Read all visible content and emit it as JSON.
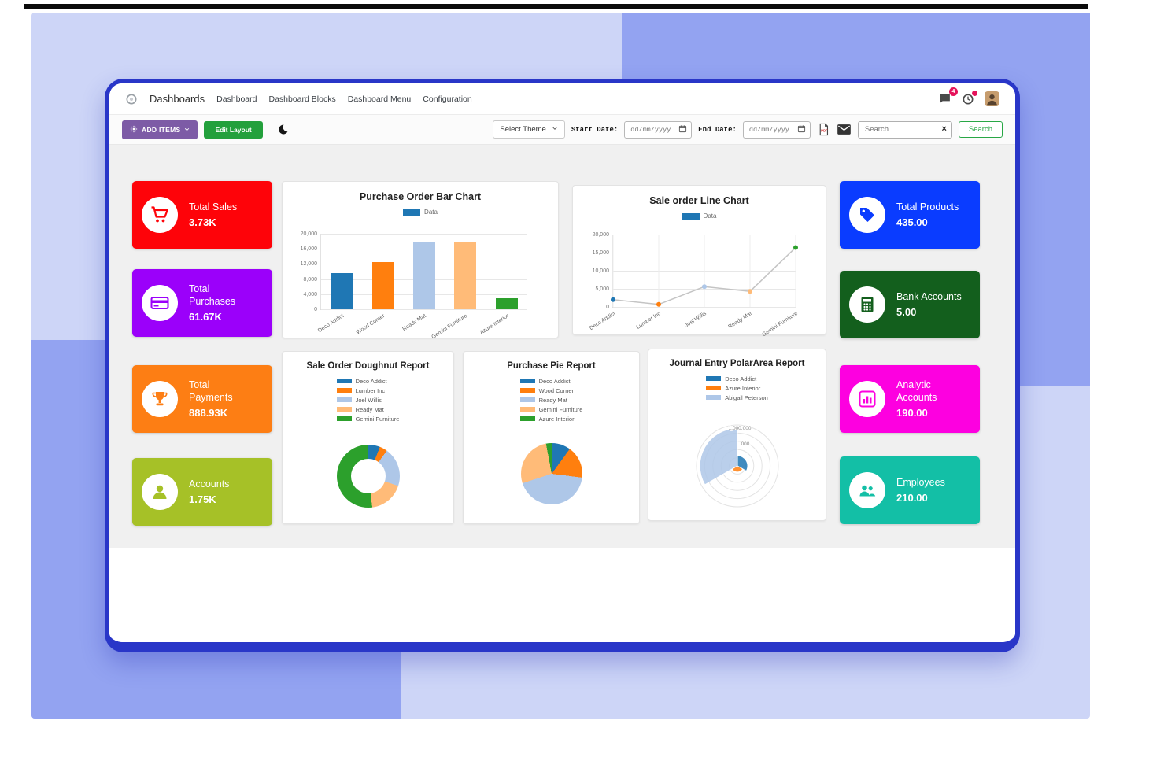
{
  "navbar": {
    "brand": "Dashboards",
    "menu": [
      "Dashboard",
      "Dashboard Blocks",
      "Dashboard Menu",
      "Configuration"
    ],
    "messages_badge": "4"
  },
  "toolbar": {
    "add_items": "ADD ITEMS",
    "edit_layout": "Edit Layout",
    "select_theme": "Select Theme",
    "start_date_label": "Start Date:",
    "end_date_label": "End Date:",
    "date_placeholder": "dd/mm/yyyy",
    "search_placeholder": "Search",
    "search_button": "Search"
  },
  "kpis": {
    "left": [
      {
        "label": "Total Sales",
        "value": "3.73K",
        "color": "#fe0309",
        "icon": "cart-icon"
      },
      {
        "label": "Total Purchases",
        "value": "61.67K",
        "color": "#9b00fa",
        "icon": "credit-card-icon"
      },
      {
        "label": "Total Payments",
        "value": "888.93K",
        "color": "#fd7e14",
        "icon": "trophy-icon"
      },
      {
        "label": "Accounts",
        "value": "1.75K",
        "color": "#a6c127",
        "icon": "user-icon"
      }
    ],
    "right": [
      {
        "label": "Total Products",
        "value": "435.00",
        "color": "#0a3cff",
        "icon": "tag-icon"
      },
      {
        "label": "Bank Accounts",
        "value": "5.00",
        "color": "#135f1d",
        "icon": "calculator-icon"
      },
      {
        "label": "Analytic Accounts",
        "value": "190.00",
        "color": "#fd00e0",
        "icon": "bar-chart-icon"
      },
      {
        "label": "Employees",
        "value": "210.00",
        "color": "#13bfa6",
        "icon": "employees-icon"
      }
    ]
  },
  "chart_data": [
    {
      "id": "purchase_bar",
      "type": "bar",
      "title": "Purchase Order Bar Chart",
      "legend": [
        {
          "label": "Data",
          "color": "#1f77b4"
        }
      ],
      "categories": [
        "Deco Addict",
        "Wood Corner",
        "Ready Mat",
        "Gemini Furniture",
        "Azure Interior"
      ],
      "values": [
        9500,
        12500,
        18000,
        17800,
        3000
      ],
      "colors": [
        "#1f77b4",
        "#ff7f0e",
        "#aec7e8",
        "#ffbb78",
        "#2ca02c"
      ],
      "yticks": [
        0,
        4000,
        8000,
        12000,
        16000,
        20000
      ],
      "ylim": [
        0,
        20000
      ]
    },
    {
      "id": "sale_line",
      "type": "line",
      "title": "Sale order Line Chart",
      "legend": [
        {
          "label": "Data",
          "color": "#1f77b4"
        }
      ],
      "categories": [
        "Deco Addict",
        "Lumber Inc",
        "Joel Willis",
        "Ready Mat",
        "Gemini Furniture"
      ],
      "values": [
        2000,
        700,
        5600,
        4300,
        16400
      ],
      "point_colors": [
        "#1f77b4",
        "#ff7f0e",
        "#aec7e8",
        "#ffbb78",
        "#2ca02c"
      ],
      "line_color": "#c4c4c4",
      "yticks": [
        0,
        5000,
        10000,
        15000,
        20000
      ],
      "ylim": [
        0,
        20000
      ]
    },
    {
      "id": "sale_doughnut",
      "type": "doughnut",
      "title": "Sale Order Doughnut Report",
      "categories": [
        "Deco Addict",
        "Lumber Inc",
        "Joel Willis",
        "Ready Mat",
        "Gemini Furniture"
      ],
      "values": [
        6,
        4,
        20,
        18,
        52
      ],
      "colors": [
        "#1f77b4",
        "#ff7f0e",
        "#aec7e8",
        "#ffbb78",
        "#2ca02c"
      ]
    },
    {
      "id": "purchase_pie",
      "type": "pie",
      "title": "Purchase Pie Report",
      "categories": [
        "Deco Addict",
        "Wood Corner",
        "Ready Mat",
        "Gemini Furniture",
        "Azure Interior"
      ],
      "values": [
        10,
        17,
        43,
        27,
        3
      ],
      "colors": [
        "#1f77b4",
        "#ff7f0e",
        "#aec7e8",
        "#ffbb78",
        "#2ca02c"
      ]
    },
    {
      "id": "journal_polar",
      "type": "polarArea",
      "title": "Journal Entry PolarArea Report",
      "categories": [
        "Deco Addict",
        "Azure Interior",
        "Abigail Peterson"
      ],
      "values": [
        250000,
        150000,
        920000
      ],
      "colors": [
        "#1f77b4",
        "#ff7f0e",
        "#aec7e8"
      ],
      "rmax": 1000000,
      "rticks_visible": [
        "1,000,000",
        "000"
      ]
    }
  ]
}
